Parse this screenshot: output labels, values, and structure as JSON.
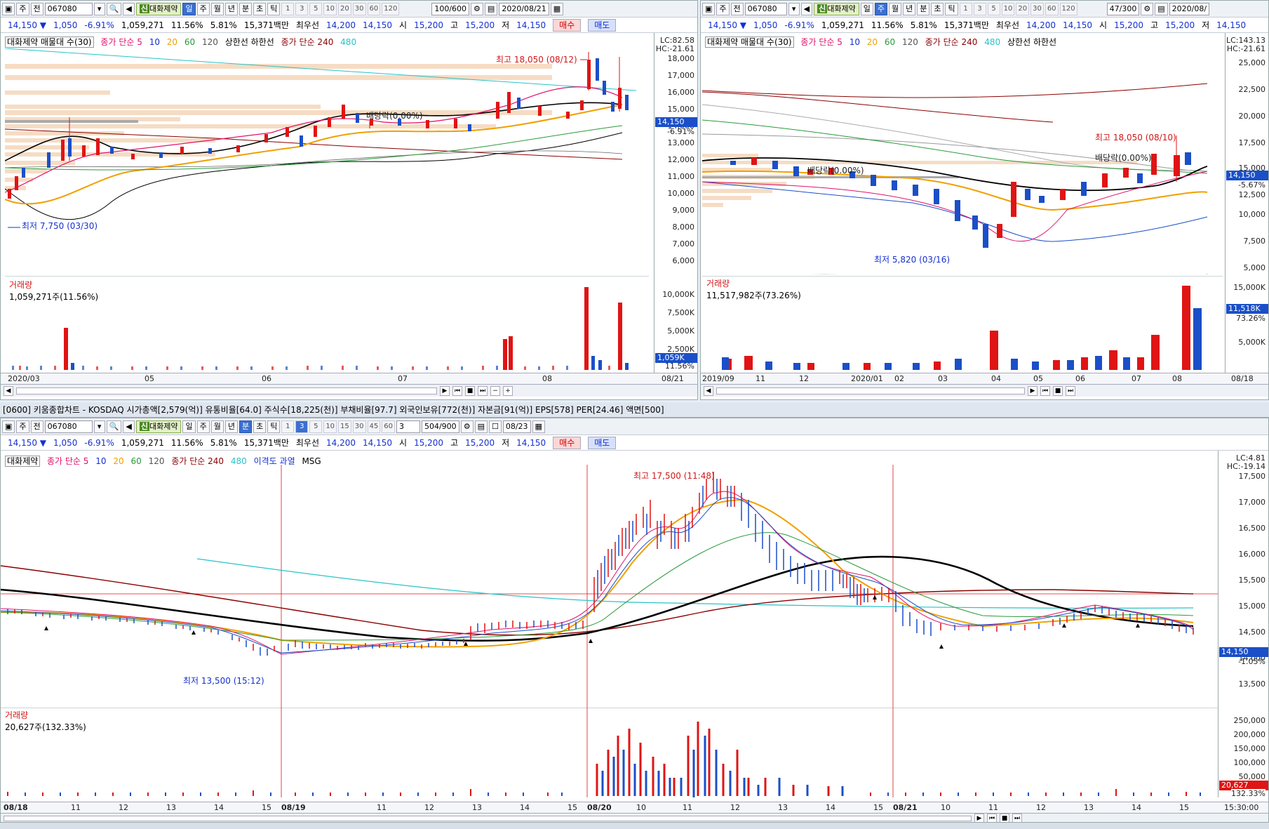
{
  "toolbar": {
    "code": "067080",
    "period_label": "주",
    "prev_label": "전",
    "name": "대화제약",
    "new_badge": "신",
    "periods": [
      "일",
      "주",
      "월",
      "년",
      "분",
      "초",
      "틱"
    ],
    "nums_a": [
      "1",
      "3",
      "5",
      "10",
      "20",
      "30",
      "60",
      "120"
    ],
    "count_a": "100/600",
    "date_a": "2020/08/21",
    "count_b": "47/300",
    "date_b": "2020/08/",
    "count_c": "504/900",
    "date_c": "08/23",
    "nums_c": [
      "1",
      "3",
      "5",
      "10",
      "15",
      "30",
      "45",
      "60"
    ],
    "sel_c": "3"
  },
  "quote": {
    "price": "14,150 ▼",
    "change": "1,050",
    "pct": "-6.91%",
    "volume": "1,059,271",
    "ratio1": "11.56%",
    "ratio2": "5.81%",
    "amount": "15,371백만",
    "prio_label": "최우선",
    "ask": "14,200",
    "bid": "14,150",
    "open_label": "시",
    "open": "15,200",
    "high_label": "고",
    "high": "15,200",
    "low_label": "저",
    "low": "14,150",
    "buy": "매수",
    "sell": "매도"
  },
  "daily": {
    "legend_name": "대화제약 매물대 수(30)",
    "ma_label": "종가 단순 5",
    "ma10": "10",
    "ma20": "20",
    "ma60": "60",
    "ma120": "120",
    "bands": "상한선 하한선",
    "ma240": "종가 단순 240",
    "ma480": "480",
    "lc": "LC:82.58",
    "hc": "HC:-21.61",
    "axis": [
      "18,000",
      "17,000",
      "16,000",
      "15,000",
      "14,000",
      "13,000",
      "12,000",
      "11,000",
      "10,000",
      "9,000",
      "8,000",
      "7,000",
      "6,000"
    ],
    "price_box": "14,150",
    "price_pct": "-6.91%",
    "high_label": "최고 18,050 (08/12)",
    "low_label": "최저 7,750 (03/30)",
    "div_label": "배당락(0.00%)",
    "vol_title": "거래량",
    "vol_value": "1,059,271주(11.56%)",
    "vol_axis": [
      "10,000K",
      "7,500K",
      "5,000K",
      "2,500K"
    ],
    "vol_box": "1,059K",
    "vol_pct": "11.56%",
    "dates": [
      "2020/03",
      "05",
      "06",
      "07",
      "08"
    ],
    "last_date": "08/21"
  },
  "weekly": {
    "legend_name": "대화제약 매물대 수(30)",
    "lc": "LC:143.13",
    "hc": "HC:-21.61",
    "axis": [
      "25,000",
      "22,500",
      "20,000",
      "17,500",
      "15,000",
      "12,500",
      "10,000",
      "7,500",
      "5,000"
    ],
    "price_box": "14,150",
    "price_pct": "-5.67%",
    "high_label": "최고 18,050 (08/10)",
    "low_label": "최저 5,820 (03/16)",
    "div_label1": "배당락(0.00%)",
    "div_label2": "배당락(0.00%)",
    "vol_title": "거래량",
    "vol_value": "11,517,982주(73.26%)",
    "vol_axis": [
      "15,000K",
      "10,000K",
      "5,000K"
    ],
    "vol_box": "11,518K",
    "vol_pct": "73.26%",
    "dates": [
      "2019/09",
      "11",
      "12",
      "2020/01",
      "02",
      "03",
      "04",
      "05",
      "06",
      "07",
      "08"
    ],
    "last_date": "08/18"
  },
  "minute": {
    "header": "[0600] 키움종합차트 - KOSDAQ 시가총액[2,579(억)] 유통비율[64.0] 주식수[18,225(천)] 부채비율[97.7] 외국인보유[772(천)] 자본금[91(억)] EPS[578] PER[24.46] 액면[500]",
    "legend_name": "대화제약",
    "ma_label": "종가 단순 5",
    "ma10": "10",
    "ma20": "20",
    "ma60": "60",
    "ma120": "120",
    "ma240": "종가 단순 240",
    "ma480": "480",
    "disp": "이격도 과열",
    "msg": "MSG",
    "lc": "LC:4.81",
    "hc": "HC:-19.14",
    "axis": [
      "17,500",
      "17,000",
      "16,500",
      "16,000",
      "15,500",
      "15,000",
      "14,500",
      "14,000",
      "13,500"
    ],
    "price_box": "14,150",
    "price_pct": "-1.05%",
    "high_label": "최고 17,500 (11:48)",
    "low_label": "최저 13,500 (15:12)",
    "vol_title": "거래량",
    "vol_value": "20,627주(132.33%)",
    "vol_axis": [
      "250,000",
      "200,000",
      "150,000",
      "100,000",
      "50,000"
    ],
    "vol_box": "20,627",
    "vol_pct": "132.33%",
    "dates": [
      "08/18",
      "11",
      "12",
      "13",
      "14",
      "15",
      "08/19",
      "11",
      "12",
      "13",
      "14",
      "15",
      "08/20",
      "10",
      "11",
      "12",
      "13",
      "14",
      "15",
      "08/21",
      "10",
      "11",
      "12",
      "13",
      "14",
      "15"
    ],
    "last_date": "15:30:00"
  },
  "colors": {
    "up": "#e01414",
    "down": "#1a4fc8",
    "ma5": "#e0106a",
    "ma20": "#f0a000",
    "ma60": "#2a9a3a",
    "black": "#000000",
    "ma240": "#8b0000",
    "cyan": "#29c3c8"
  }
}
